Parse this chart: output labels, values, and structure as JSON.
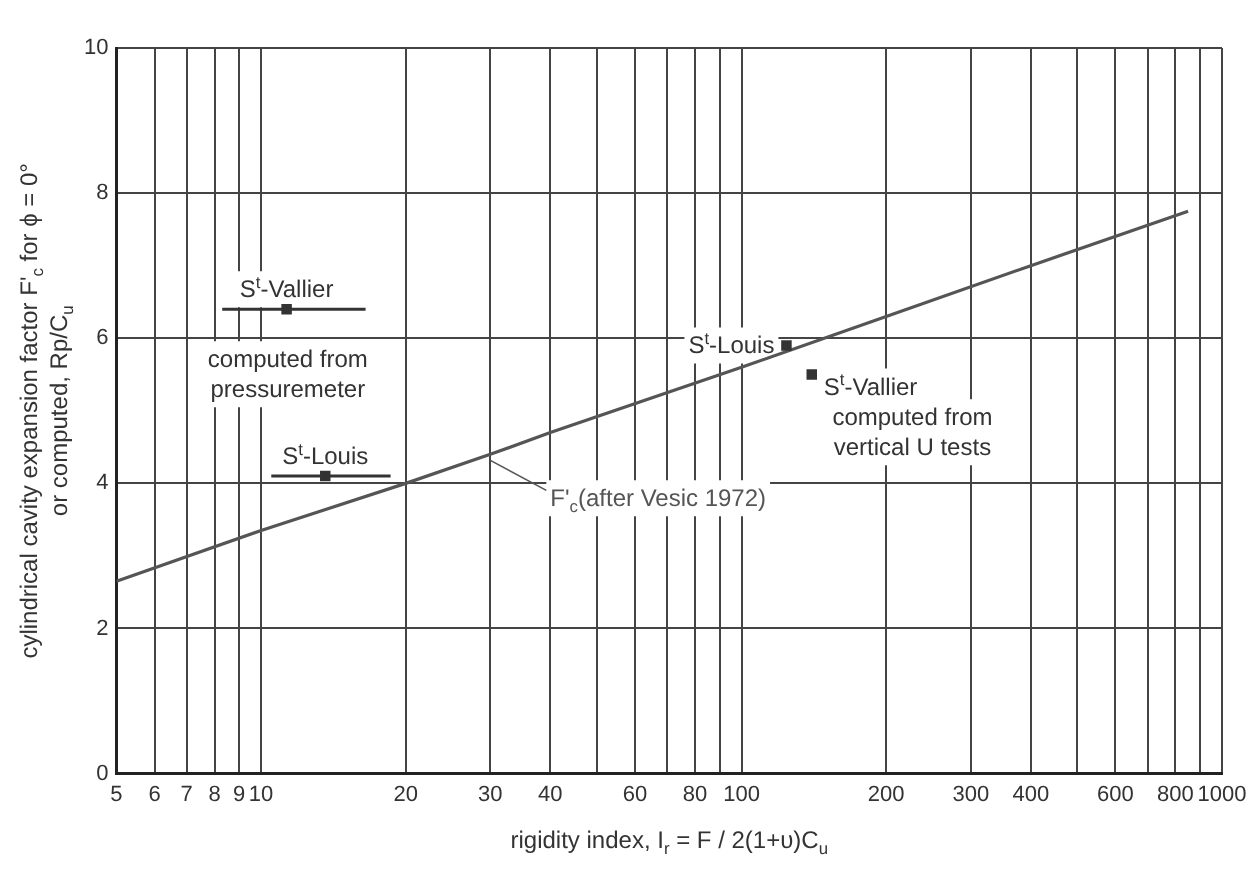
{
  "chart_data": {
    "type": "scatter",
    "xlabel": "rigidity index, I$_{r}$ = F / 2(1+υ)C$_{u}$",
    "ylabel": "cylindrical cavity expansion factor F'$_{c}$ for ϕ = 0°\nor computed, Rp/C$_{u}$",
    "log": "x",
    "xlim": [
      5,
      1000
    ],
    "ylim": [
      0,
      10
    ],
    "xticks": [
      5,
      6,
      7,
      8,
      9,
      10,
      20,
      30,
      40,
      {
        "value": 50,
        "label": null
      },
      60,
      {
        "value": 70,
        "label": null
      },
      80,
      {
        "value": 90,
        "label": null
      },
      100,
      200,
      300,
      400,
      {
        "value": 500,
        "label": null
      },
      600,
      {
        "value": 700,
        "label": null
      },
      800,
      {
        "value": 900,
        "label": null
      },
      1000
    ],
    "yticks": [
      0,
      2,
      4,
      6,
      8,
      10
    ],
    "grid": true,
    "legend": false,
    "marker": "square",
    "series": [
      {
        "name": "F'$_{c}$(after Vesic 1972)",
        "type": "line",
        "marker": "none",
        "color": "#555555",
        "x": [
          5,
          10,
          20,
          30,
          40,
          100,
          200,
          400,
          850
        ],
        "values": [
          2.65,
          3.35,
          4.0,
          4.4,
          4.7,
          5.6,
          6.3,
          7.0,
          7.75
        ]
      },
      {
        "name": "S$^{t}$-Vallier",
        "color": "#333333",
        "x": [
          11.3
        ],
        "values": [
          6.4
        ],
        "xerrors": [
          [
            8.3,
            16.5
          ]
        ]
      },
      {
        "name": "S$^{t}$-Louis",
        "color": "#333333",
        "x": [
          13.6
        ],
        "values": [
          4.1
        ],
        "xerrors": [
          [
            10.5,
            18.6
          ]
        ]
      },
      {
        "name": "S$^{t}$-Louis",
        "color": "#333333",
        "x": [
          124
        ],
        "values": [
          5.9
        ]
      },
      {
        "name": "S$^{t}$-Vallier",
        "color": "#333333",
        "x": [
          140
        ],
        "values": [
          5.5
        ]
      }
    ],
    "annotations": [
      "computed from pressuremeter",
      "computed from vertical U tests"
    ]
  }
}
